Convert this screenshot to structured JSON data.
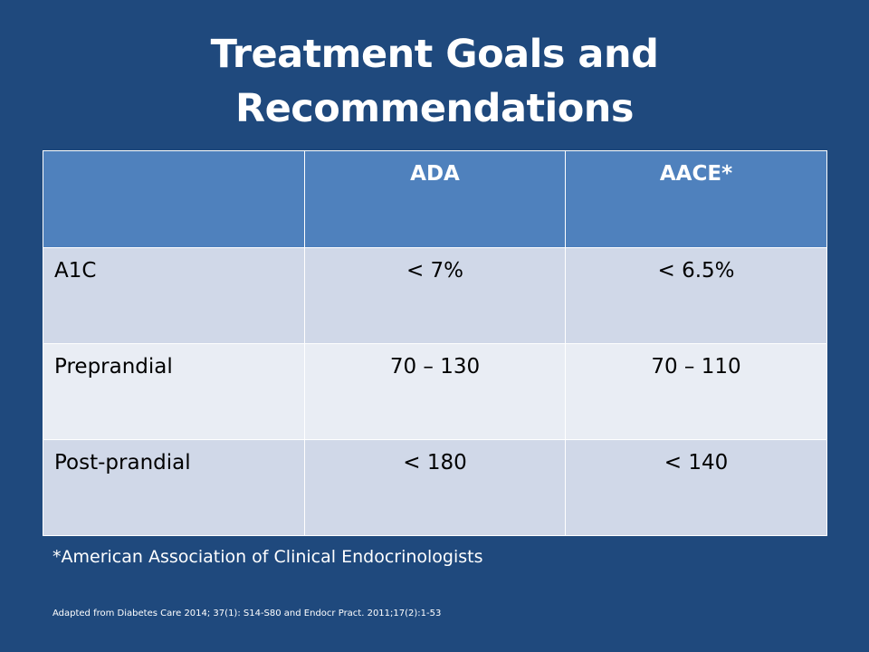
{
  "slide": {
    "title_line1": "Treatment Goals and",
    "title_line2": "Recommendations",
    "table": {
      "headers": [
        "",
        "ADA",
        "AACE*"
      ],
      "rows": [
        {
          "label": "A1C",
          "ada": "< 7%",
          "aace": "< 6.5%"
        },
        {
          "label": "Preprandial",
          "ada": "70 – 130",
          "aace": "70 – 110"
        },
        {
          "label": "Post-prandial",
          "ada": "< 180",
          "aace": "< 140"
        }
      ]
    },
    "footnote": "*American Association of Clinical Endocrinologists",
    "source": "Adapted from Diabetes Care 2014; 37(1): S14-S80 and  Endocr Pract. 2011;17(2):1-53"
  },
  "colors": {
    "background": "#1f497d",
    "header": "#4f81bd",
    "row_odd": "#d0d8e8",
    "row_even": "#e9edf4",
    "text_light": "#ffffff"
  }
}
